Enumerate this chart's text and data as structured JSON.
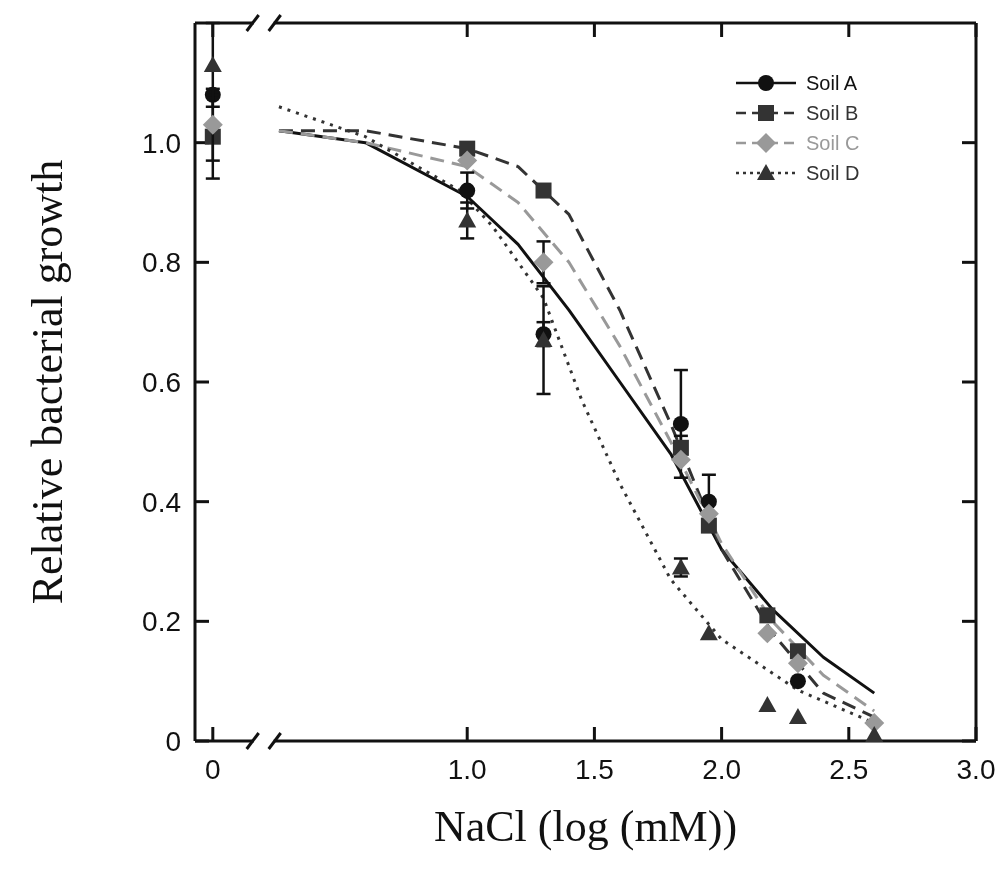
{
  "chart_data": {
    "type": "scatter",
    "xlabel": "NaCl (log (mM))",
    "ylabel": "Relative bacterial growth",
    "xlim": [
      -0.07,
      3.0
    ],
    "ylim": [
      0,
      1.2
    ],
    "xticks": [
      {
        "value": 0,
        "label": "0"
      },
      {
        "value": 1,
        "label": "1.0"
      },
      {
        "value": 1.5,
        "label": "1.5"
      },
      {
        "value": 2,
        "label": "2.0"
      },
      {
        "value": 2.5,
        "label": "2.5"
      },
      {
        "value": 3,
        "label": "3.0"
      }
    ],
    "yticks": [
      {
        "value": 0,
        "label": "0"
      },
      {
        "value": 0.2,
        "label": "0.2"
      },
      {
        "value": 0.4,
        "label": "0.4"
      },
      {
        "value": 0.6,
        "label": "0.6"
      },
      {
        "value": 0.8,
        "label": "0.8"
      },
      {
        "value": 1,
        "label": "1.0"
      }
    ],
    "grid": false,
    "legend": "top right",
    "series": [
      {
        "name": "Soil A",
        "marker": "circle",
        "line_style": "solid",
        "color": "#111111",
        "x": [
          0,
          1,
          1.3,
          1.84,
          1.95,
          2.3
        ],
        "values": [
          1.08,
          0.92,
          0.68,
          0.53,
          0.4,
          0.1
        ],
        "errors": [
          null,
          0.03,
          0.02,
          0.09,
          0.045,
          null
        ]
      },
      {
        "name": "Soil B",
        "marker": "square",
        "line_style": "dashed",
        "color": "#333333",
        "x": [
          0,
          1,
          1.3,
          1.84,
          1.95,
          2.18,
          2.3
        ],
        "values": [
          1.01,
          0.99,
          0.92,
          0.49,
          0.36,
          0.21,
          0.15
        ],
        "errors": [
          0.07,
          null,
          null,
          0.02,
          null,
          null,
          null
        ]
      },
      {
        "name": "Soil C",
        "marker": "diamond",
        "line_style": "dashed",
        "color": "#999999",
        "x": [
          0,
          1,
          1.3,
          1.84,
          1.95,
          2.18,
          2.3,
          2.6
        ],
        "values": [
          1.03,
          0.97,
          0.8,
          0.47,
          0.38,
          0.18,
          0.13,
          0.03
        ],
        "errors": [
          0.06,
          null,
          0.035,
          null,
          null,
          null,
          null,
          null
        ]
      },
      {
        "name": "Soil D",
        "marker": "triangle",
        "line_style": "dotted",
        "color": "#333333",
        "x": [
          0,
          1,
          1.3,
          1.84,
          1.95,
          2.18,
          2.3,
          2.6
        ],
        "values": [
          1.13,
          0.87,
          0.67,
          0.29,
          0.18,
          0.06,
          0.04,
          0.01
        ],
        "errors": [
          0.07,
          0.03,
          0.09,
          0.015,
          null,
          null,
          null,
          null
        ]
      },
      {
        "type": "line",
        "line_style": "solid",
        "color": "#111111",
        "x": [
          0.26,
          0.6,
          1.0,
          1.2,
          1.4,
          1.6,
          1.8,
          2.0,
          2.2,
          2.4,
          2.6
        ],
        "values": [
          1.02,
          1.0,
          0.91,
          0.83,
          0.72,
          0.6,
          0.48,
          0.32,
          0.22,
          0.14,
          0.08
        ]
      },
      {
        "type": "line",
        "line_style": "dashed",
        "color": "#333333",
        "x": [
          0.26,
          0.6,
          1.0,
          1.2,
          1.4,
          1.5,
          1.6,
          1.8,
          2.0,
          2.2,
          2.4,
          2.6
        ],
        "values": [
          1.02,
          1.02,
          0.99,
          0.96,
          0.88,
          0.8,
          0.72,
          0.53,
          0.32,
          0.18,
          0.08,
          0.04
        ]
      },
      {
        "type": "line",
        "line_style": "dashed",
        "color": "#999999",
        "x": [
          0.26,
          0.6,
          1.0,
          1.2,
          1.4,
          1.6,
          1.8,
          2.0,
          2.2,
          2.4,
          2.6
        ],
        "values": [
          1.02,
          1.0,
          0.96,
          0.9,
          0.8,
          0.66,
          0.5,
          0.33,
          0.2,
          0.11,
          0.05
        ]
      },
      {
        "type": "line",
        "line_style": "dotted",
        "color": "#333333",
        "x": [
          0.26,
          0.6,
          0.97,
          1.1,
          1.3,
          1.45,
          1.6,
          1.8,
          2.0,
          2.3,
          2.6
        ],
        "values": [
          1.06,
          1.01,
          0.92,
          0.86,
          0.74,
          0.57,
          0.43,
          0.27,
          0.17,
          0.085,
          0.03
        ]
      }
    ]
  }
}
